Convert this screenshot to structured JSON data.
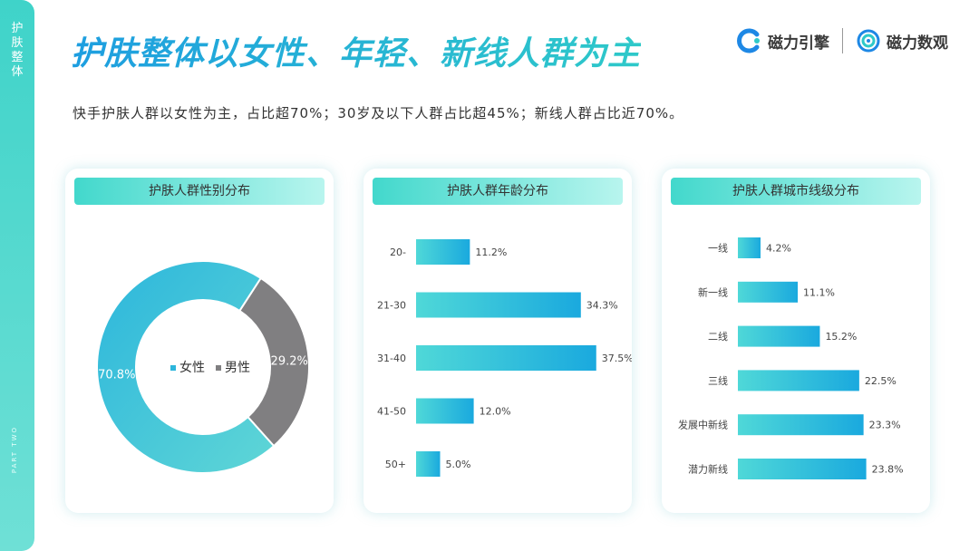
{
  "sidebar": {
    "label": "护肤整体",
    "part": "PART TWO"
  },
  "header": {
    "title": "护肤整体以女性、年轻、新线人群为主",
    "subtitle": "快手护肤人群以女性为主，占比超70%；30岁及以下人群占比超45%；新线人群占比近70%。"
  },
  "logos": {
    "left": "磁力引擎",
    "right": "磁力数观"
  },
  "colors": {
    "accent": "#1fb6d9",
    "teal": "#3ed3ca",
    "grey": "#807f81"
  },
  "chart_data": [
    {
      "type": "pie",
      "title": "护肤人群性别分布",
      "categories": [
        "女性",
        "男性"
      ],
      "values": [
        70.8,
        29.2
      ],
      "labels": [
        "70.8%",
        "29.2%"
      ],
      "colors": [
        "#47cbd8",
        "#807f81"
      ],
      "legend": "center"
    },
    {
      "type": "bar",
      "orientation": "horizontal",
      "title": "护肤人群年龄分布",
      "categories": [
        "20-",
        "21-30",
        "31-40",
        "41-50",
        "50+"
      ],
      "values": [
        11.2,
        34.3,
        37.5,
        12.0,
        5.0
      ],
      "labels": [
        "11.2%",
        "34.3%",
        "37.5%",
        "12.0%",
        "5.0%"
      ]
    },
    {
      "type": "bar",
      "orientation": "horizontal",
      "title": "护肤人群城市线级分布",
      "categories": [
        "一线",
        "新一线",
        "二线",
        "三线",
        "发展中新线",
        "潜力新线"
      ],
      "values": [
        4.2,
        11.1,
        15.2,
        22.5,
        23.3,
        23.8
      ],
      "labels": [
        "4.2%",
        "11.1%",
        "15.2%",
        "22.5%",
        "23.3%",
        "23.8%"
      ]
    }
  ]
}
